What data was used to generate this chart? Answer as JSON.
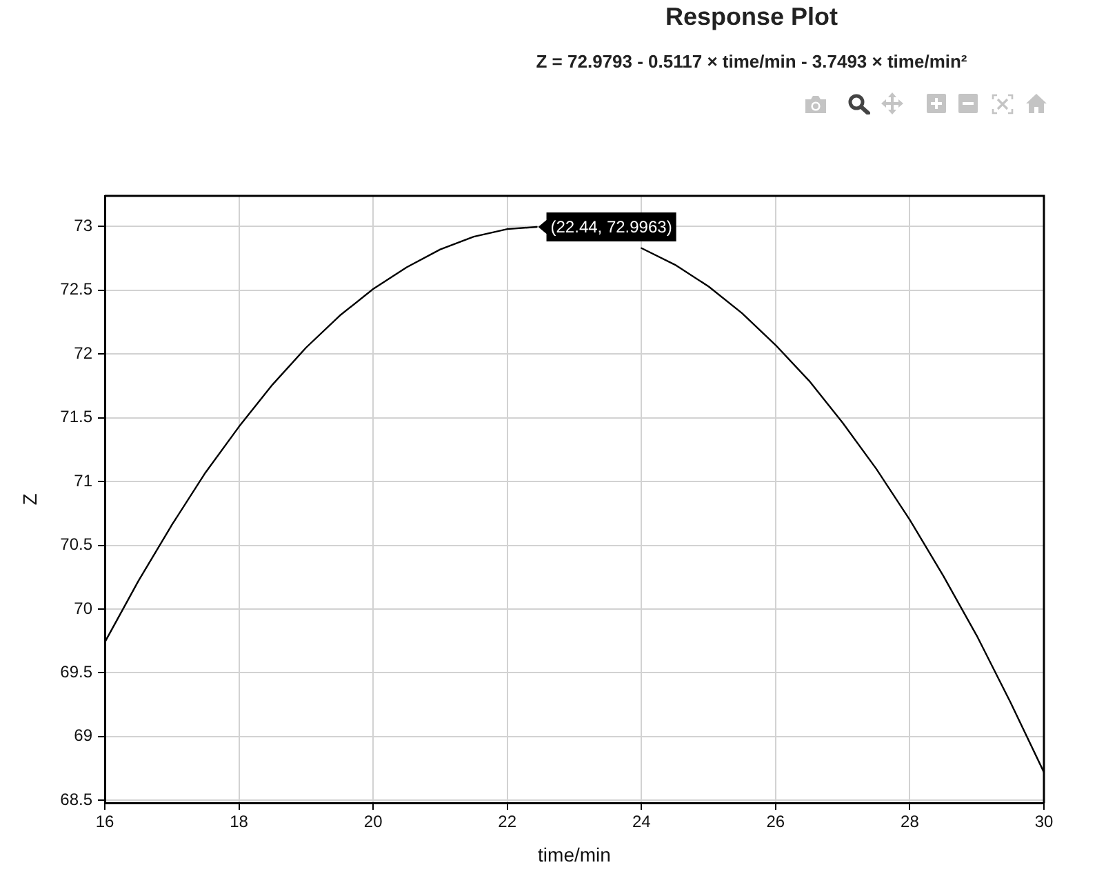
{
  "chart_data": {
    "type": "line",
    "title": "Response Plot",
    "subtitle": "Z = 72.9793 - 0.5117 × time/min - 3.7493 × time/min²",
    "xlabel": "time/min",
    "ylabel": "Z",
    "x": [
      16,
      16.5,
      17,
      17.5,
      18,
      18.5,
      19,
      19.5,
      20,
      20.5,
      21,
      21.5,
      22,
      22.44,
      23,
      23.5,
      24,
      24.5,
      25,
      25.5,
      26,
      26.5,
      27,
      27.5,
      28,
      28.5,
      29,
      29.5,
      30
    ],
    "series": [
      {
        "color": "#000000",
        "values": [
          69.74,
          70.22,
          70.66,
          71.07,
          71.43,
          71.76,
          72.05,
          72.3,
          72.51,
          72.68,
          72.82,
          72.92,
          72.98,
          72.9963,
          null,
          null,
          72.83,
          72.7,
          72.53,
          72.32,
          72.07,
          71.79,
          71.46,
          71.1,
          70.7,
          70.26,
          69.79,
          69.27,
          68.72
        ]
      }
    ],
    "xlim": [
      16,
      30
    ],
    "xticks": [
      16,
      18,
      20,
      22,
      24,
      26,
      28,
      30
    ],
    "ylim": [
      68.48,
      73.24
    ],
    "yticks": [
      68.5,
      69,
      69.5,
      70,
      70.5,
      71,
      71.5,
      72,
      72.5,
      73
    ],
    "grid": true,
    "legend": false,
    "marker": "none",
    "line_style": "solid",
    "annotations": [
      {
        "text": "(22.44, 72.9963)",
        "x": 22.44,
        "y": 72.9963
      }
    ]
  }
}
